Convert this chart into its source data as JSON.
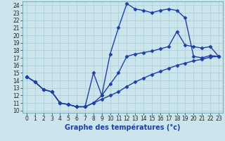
{
  "bg_color": "#cce5ec",
  "line_color": "#1c3faa",
  "title": "Graphe des températures (°c)",
  "xlim": [
    -0.5,
    23.5
  ],
  "ylim": [
    9.7,
    24.5
  ],
  "xticks": [
    0,
    1,
    2,
    3,
    4,
    5,
    6,
    7,
    8,
    9,
    10,
    11,
    12,
    13,
    14,
    15,
    16,
    17,
    18,
    19,
    20,
    21,
    22,
    23
  ],
  "yticks": [
    10,
    11,
    12,
    13,
    14,
    15,
    16,
    17,
    18,
    19,
    20,
    21,
    22,
    23,
    24
  ],
  "curve1_x": [
    0,
    1,
    2,
    3,
    4,
    5,
    6,
    7,
    8,
    9,
    10,
    11,
    12,
    13,
    14,
    15,
    16,
    17,
    18,
    19,
    20,
    21,
    22,
    23
  ],
  "curve1_y": [
    14.5,
    13.8,
    12.8,
    12.5,
    11.0,
    10.8,
    10.5,
    10.5,
    15.0,
    12.0,
    17.5,
    21.0,
    24.2,
    23.5,
    23.3,
    23.0,
    23.3,
    23.5,
    23.3,
    22.3,
    17.2,
    17.0,
    17.3,
    17.2
  ],
  "curve2_x": [
    0,
    1,
    2,
    3,
    4,
    5,
    6,
    7,
    8,
    9,
    10,
    11,
    12,
    13,
    14,
    15,
    16,
    17,
    18,
    19,
    20,
    21,
    22,
    23
  ],
  "curve2_y": [
    14.5,
    13.8,
    12.8,
    12.5,
    11.0,
    10.8,
    10.5,
    10.5,
    11.0,
    11.5,
    12.0,
    12.5,
    13.2,
    13.8,
    14.3,
    14.8,
    15.2,
    15.6,
    16.0,
    16.3,
    16.6,
    16.8,
    17.1,
    17.2
  ],
  "curve3_x": [
    0,
    1,
    2,
    3,
    4,
    5,
    6,
    7,
    8,
    9,
    10,
    11,
    12,
    13,
    14,
    15,
    16,
    17,
    18,
    19,
    20,
    21,
    22,
    23
  ],
  "curve3_y": [
    14.5,
    13.8,
    12.8,
    12.5,
    11.0,
    10.8,
    10.5,
    10.5,
    11.0,
    12.0,
    13.5,
    15.0,
    17.2,
    17.5,
    17.7,
    17.9,
    18.2,
    18.5,
    20.5,
    18.7,
    18.5,
    18.3,
    18.5,
    17.2
  ],
  "marker": "D",
  "markersize": 2.5,
  "linewidth": 1.0,
  "xlabel_fontsize": 7,
  "tick_fontsize": 5.5,
  "grid_color": "#b0d4dc"
}
